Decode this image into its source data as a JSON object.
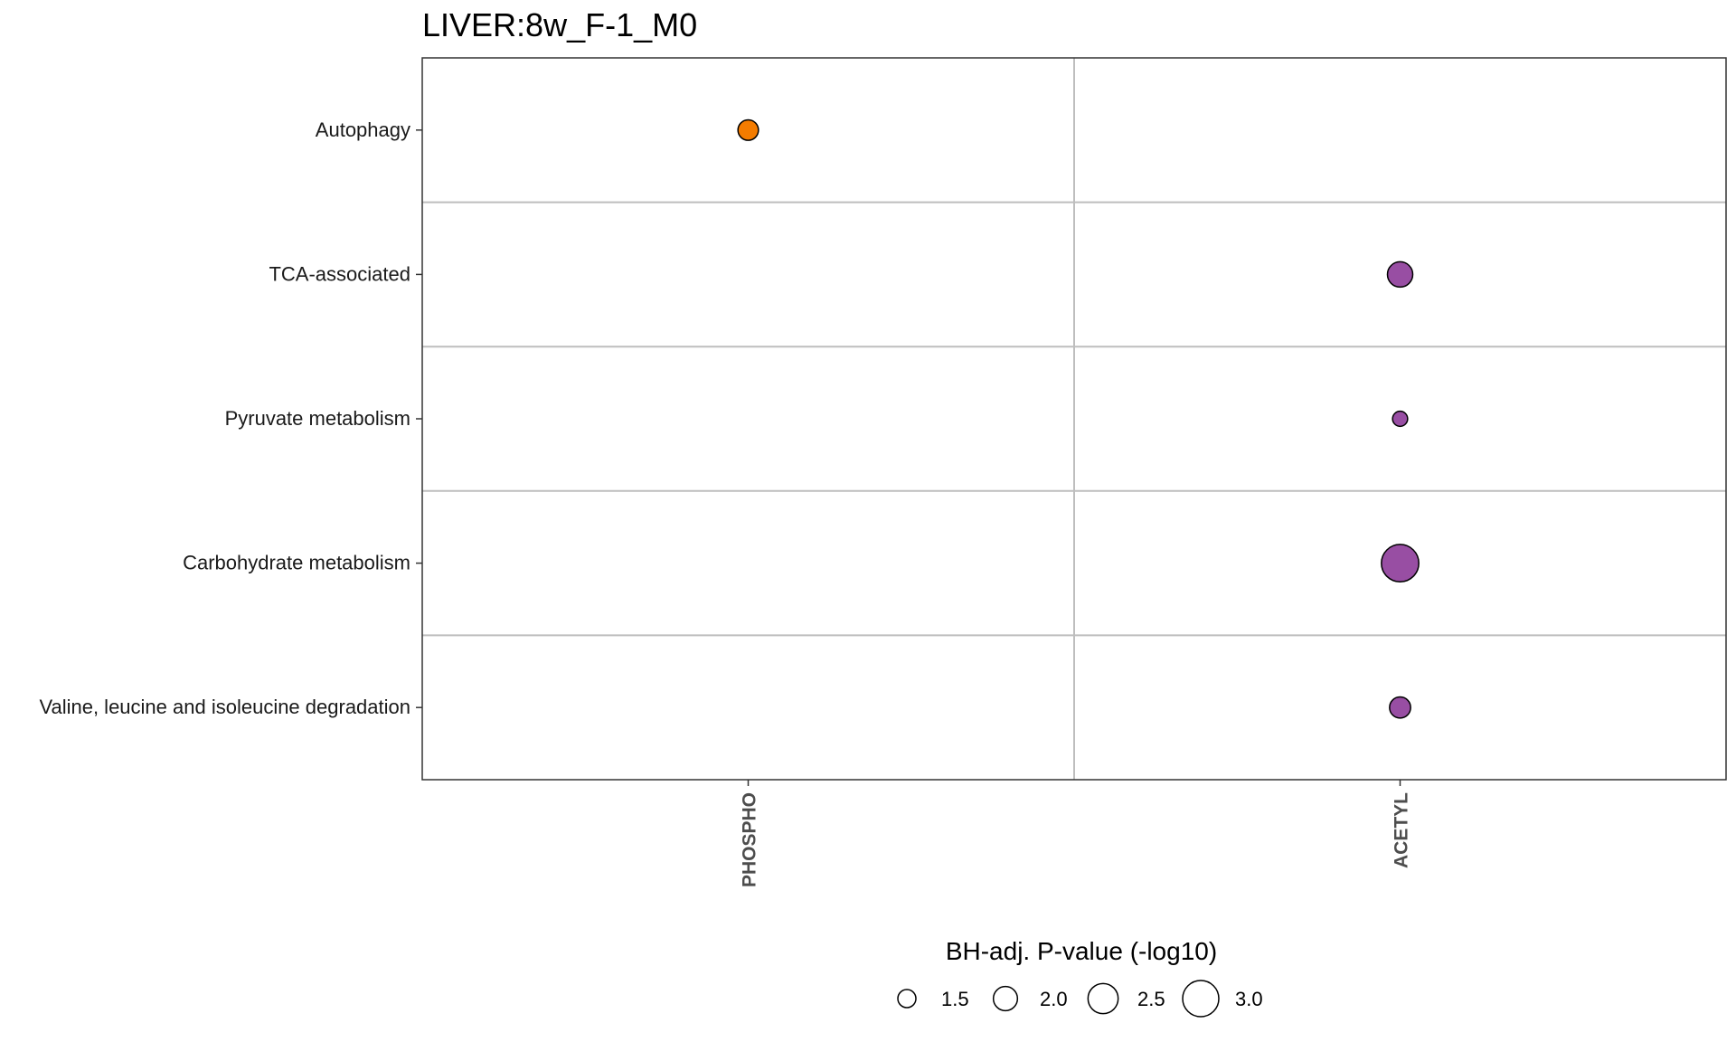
{
  "chart_data": {
    "type": "scatter",
    "title": "LIVER:8w_F-1_M0",
    "x_categories": [
      "PHOSPHO",
      "ACETYL"
    ],
    "y_categories": [
      "Autophagy",
      "TCA-associated",
      "Pyruvate metabolism",
      "Carbohydrate metabolism",
      "Valine, leucine and isoleucine degradation"
    ],
    "points": [
      {
        "x": "PHOSPHO",
        "y": "Autophagy",
        "size_value": 1.7,
        "color": "#f47c00"
      },
      {
        "x": "ACETYL",
        "y": "TCA-associated",
        "size_value": 2.1,
        "color": "#984ea3"
      },
      {
        "x": "ACETYL",
        "y": "Pyruvate metabolism",
        "size_value": 1.25,
        "color": "#984ea3"
      },
      {
        "x": "ACETYL",
        "y": "Carbohydrate metabolism",
        "size_value": 3.1,
        "color": "#984ea3"
      },
      {
        "x": "ACETYL",
        "y": "Valine, leucine and isoleucine degradation",
        "size_value": 1.75,
        "color": "#984ea3"
      }
    ],
    "size_legend": {
      "title": "BH-adj. P-value (-log10)",
      "values": [
        1.5,
        2.0,
        2.5,
        3.0
      ],
      "labels": [
        "1.5",
        "2.0",
        "2.5",
        "3.0"
      ]
    },
    "grid": true,
    "legend_position": "bottom",
    "colors": {
      "panel_border": "#333333",
      "grid": "#bebebe",
      "point_stroke": "#000000"
    }
  }
}
